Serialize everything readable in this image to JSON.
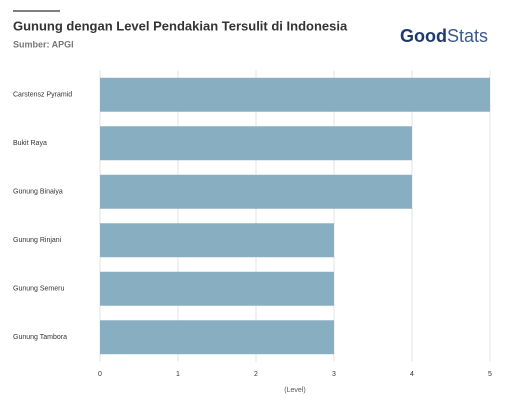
{
  "chart_data": {
    "type": "barh",
    "title": "Gunung dengan Level Pendakian Tersulit di Indonesia",
    "subtitle": "Sumber: APGI",
    "logo": [
      "Good",
      "Stats"
    ],
    "categories": [
      "Carstensz Pyramid",
      "Bukit Raya",
      "Gunung Binaiya",
      "Gunung Rinjani",
      "Gunung Semeru",
      "Gunung Tambora"
    ],
    "values": [
      5,
      4,
      4,
      3,
      3,
      3
    ],
    "color": "#87aec1",
    "xlabel": "(Level)",
    "xlim": [
      0,
      5
    ],
    "xticks": [
      0,
      1,
      2,
      3,
      4,
      5
    ],
    "grid": true
  }
}
